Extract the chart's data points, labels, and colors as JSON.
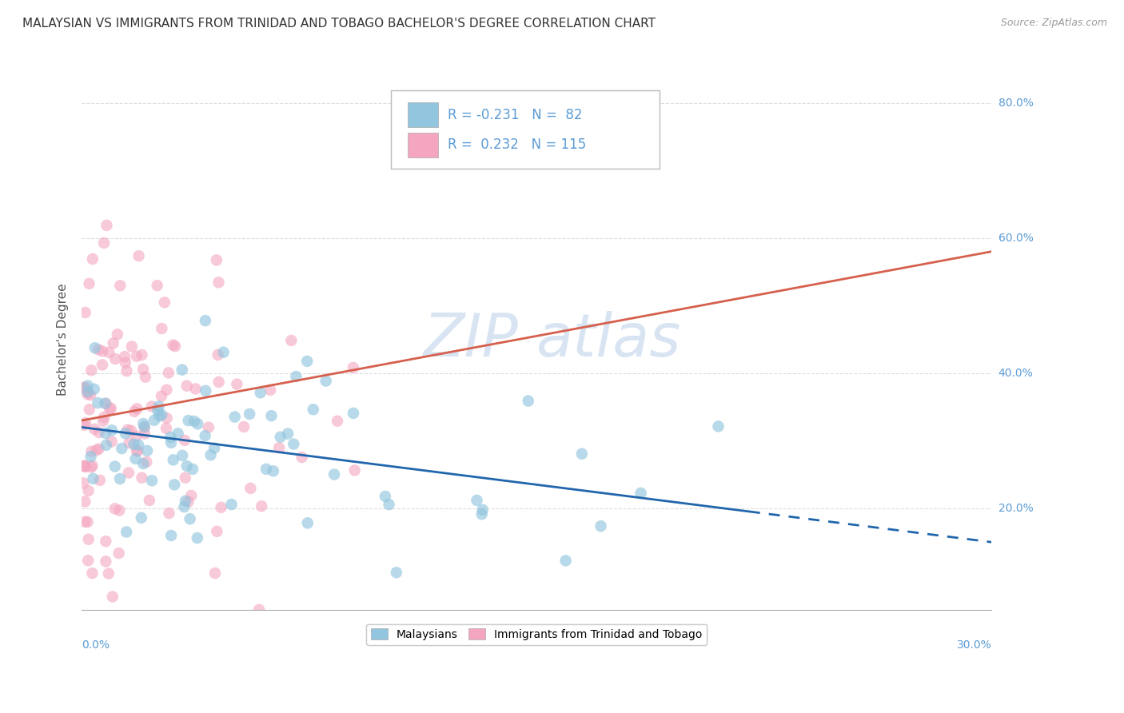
{
  "title": "MALAYSIAN VS IMMIGRANTS FROM TRINIDAD AND TOBAGO BACHELOR'S DEGREE CORRELATION CHART",
  "source": "Source: ZipAtlas.com",
  "xlabel_bottom_left": "0.0%",
  "xlabel_bottom_right": "30.0%",
  "ylabel": "Bachelor's Degree",
  "xmin": 0.0,
  "xmax": 30.0,
  "ymin": 5.0,
  "ymax": 85.0,
  "watermark_zip": "ZIP",
  "watermark_atlas": "atlas",
  "blue_color": "#92c5de",
  "pink_color": "#f4a6c0",
  "blue_line_color": "#2166ac",
  "pink_line_color": "#d6604d",
  "grid_color": "#dddddd",
  "title_color": "#333333",
  "axis_label_color": "#5b9bd5",
  "legend_text_color": "#5b9bd5",
  "background_color": "#ffffff",
  "title_fontsize": 11,
  "seed": 7,
  "blue_line_y0": 32.0,
  "blue_line_y30": 15.0,
  "blue_dash_xstart": 22.0,
  "pink_line_y0": 33.0,
  "pink_line_y30": 58.0
}
